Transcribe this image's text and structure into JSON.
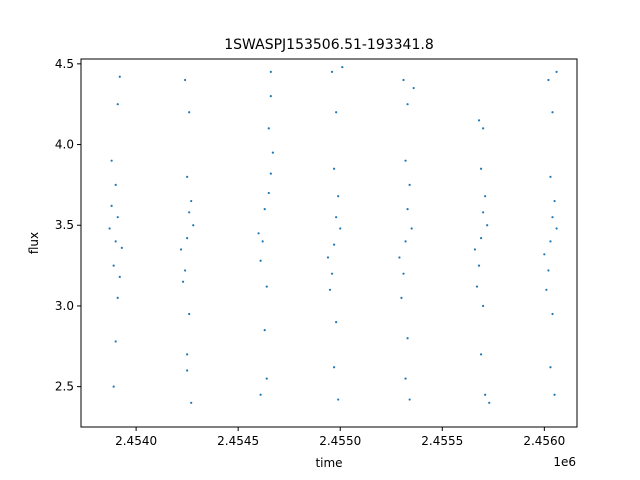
{
  "chart_data": {
    "type": "scatter",
    "title": "1SWASPJ153506.51-193341.8",
    "xlabel": "time",
    "ylabel": "flux",
    "x_offset_label": "1e6",
    "xlim": [
      2.45373,
      2.45616
    ],
    "ylim": [
      2.25,
      4.53
    ],
    "x_ticks": [
      2.454,
      2.4545,
      2.455,
      2.4555,
      2.456
    ],
    "x_tick_labels": [
      "2.4540",
      "2.4545",
      "2.4550",
      "2.4555",
      "2.4560"
    ],
    "y_ticks": [
      2.5,
      3.0,
      3.5,
      4.0,
      4.5
    ],
    "y_tick_labels": [
      "2.5",
      "3.0",
      "3.5",
      "4.0",
      "4.5"
    ],
    "grid": false,
    "marker_color": "#1f77b4",
    "series": [
      {
        "points": [
          [
            2.4539,
            3.4
          ],
          [
            2.45391,
            3.55
          ],
          [
            2.45389,
            3.25
          ],
          [
            2.45388,
            3.62
          ],
          [
            2.45392,
            3.18
          ],
          [
            2.4539,
            3.75
          ],
          [
            2.45391,
            3.05
          ],
          [
            2.45387,
            3.48
          ],
          [
            2.45393,
            3.36
          ],
          [
            2.4539,
            2.78
          ],
          [
            2.45391,
            4.25
          ],
          [
            2.45389,
            2.5
          ],
          [
            2.45392,
            4.42
          ],
          [
            2.45388,
            3.9
          ],
          [
            2.45425,
            3.42
          ],
          [
            2.45426,
            3.58
          ],
          [
            2.45424,
            3.22
          ],
          [
            2.45427,
            3.65
          ],
          [
            2.45423,
            3.15
          ],
          [
            2.45425,
            3.8
          ],
          [
            2.45426,
            2.95
          ],
          [
            2.45428,
            3.5
          ],
          [
            2.45422,
            3.35
          ],
          [
            2.45425,
            2.6
          ],
          [
            2.45426,
            4.2
          ],
          [
            2.45427,
            2.4
          ],
          [
            2.45424,
            4.4
          ],
          [
            2.45425,
            2.7
          ],
          [
            2.45462,
            3.4
          ],
          [
            2.45463,
            3.6
          ],
          [
            2.45461,
            3.28
          ],
          [
            2.45465,
            3.7
          ],
          [
            2.45466,
            3.82
          ],
          [
            2.45464,
            3.12
          ],
          [
            2.45467,
            3.95
          ],
          [
            2.4546,
            3.45
          ],
          [
            2.45463,
            2.85
          ],
          [
            2.45465,
            4.1
          ],
          [
            2.45466,
            4.3
          ],
          [
            2.45464,
            2.55
          ],
          [
            2.45461,
            2.45
          ],
          [
            2.45466,
            4.45
          ],
          [
            2.45497,
            3.38
          ],
          [
            2.45498,
            3.55
          ],
          [
            2.45496,
            3.2
          ],
          [
            2.45499,
            3.68
          ],
          [
            2.45495,
            3.1
          ],
          [
            2.45497,
            3.85
          ],
          [
            2.45498,
            2.9
          ],
          [
            2.455,
            3.48
          ],
          [
            2.45494,
            3.3
          ],
          [
            2.45497,
            2.62
          ],
          [
            2.45498,
            4.2
          ],
          [
            2.45499,
            2.42
          ],
          [
            2.45496,
            4.45
          ],
          [
            2.45501,
            4.48
          ],
          [
            2.45532,
            3.4
          ],
          [
            2.45533,
            3.6
          ],
          [
            2.45531,
            3.2
          ],
          [
            2.45534,
            3.75
          ],
          [
            2.4553,
            3.05
          ],
          [
            2.45532,
            3.9
          ],
          [
            2.45533,
            2.8
          ],
          [
            2.45535,
            3.48
          ],
          [
            2.45529,
            3.3
          ],
          [
            2.45532,
            2.55
          ],
          [
            2.45533,
            4.25
          ],
          [
            2.45534,
            2.42
          ],
          [
            2.45531,
            4.4
          ],
          [
            2.45536,
            4.35
          ],
          [
            2.45569,
            3.42
          ],
          [
            2.4557,
            3.58
          ],
          [
            2.45568,
            3.25
          ],
          [
            2.45571,
            3.68
          ],
          [
            2.45567,
            3.12
          ],
          [
            2.45569,
            3.85
          ],
          [
            2.4557,
            3.0
          ],
          [
            2.45572,
            3.5
          ],
          [
            2.45566,
            3.35
          ],
          [
            2.45569,
            2.7
          ],
          [
            2.4557,
            4.1
          ],
          [
            2.45571,
            2.45
          ],
          [
            2.45568,
            4.15
          ],
          [
            2.45573,
            2.4
          ],
          [
            2.45603,
            3.4
          ],
          [
            2.45604,
            3.55
          ],
          [
            2.45602,
            3.22
          ],
          [
            2.45605,
            3.65
          ],
          [
            2.45601,
            3.1
          ],
          [
            2.45603,
            3.8
          ],
          [
            2.45604,
            2.95
          ],
          [
            2.45606,
            3.48
          ],
          [
            2.456,
            3.32
          ],
          [
            2.45603,
            2.62
          ],
          [
            2.45604,
            4.2
          ],
          [
            2.45605,
            2.45
          ],
          [
            2.45602,
            4.4
          ],
          [
            2.45606,
            4.45
          ]
        ]
      }
    ]
  }
}
